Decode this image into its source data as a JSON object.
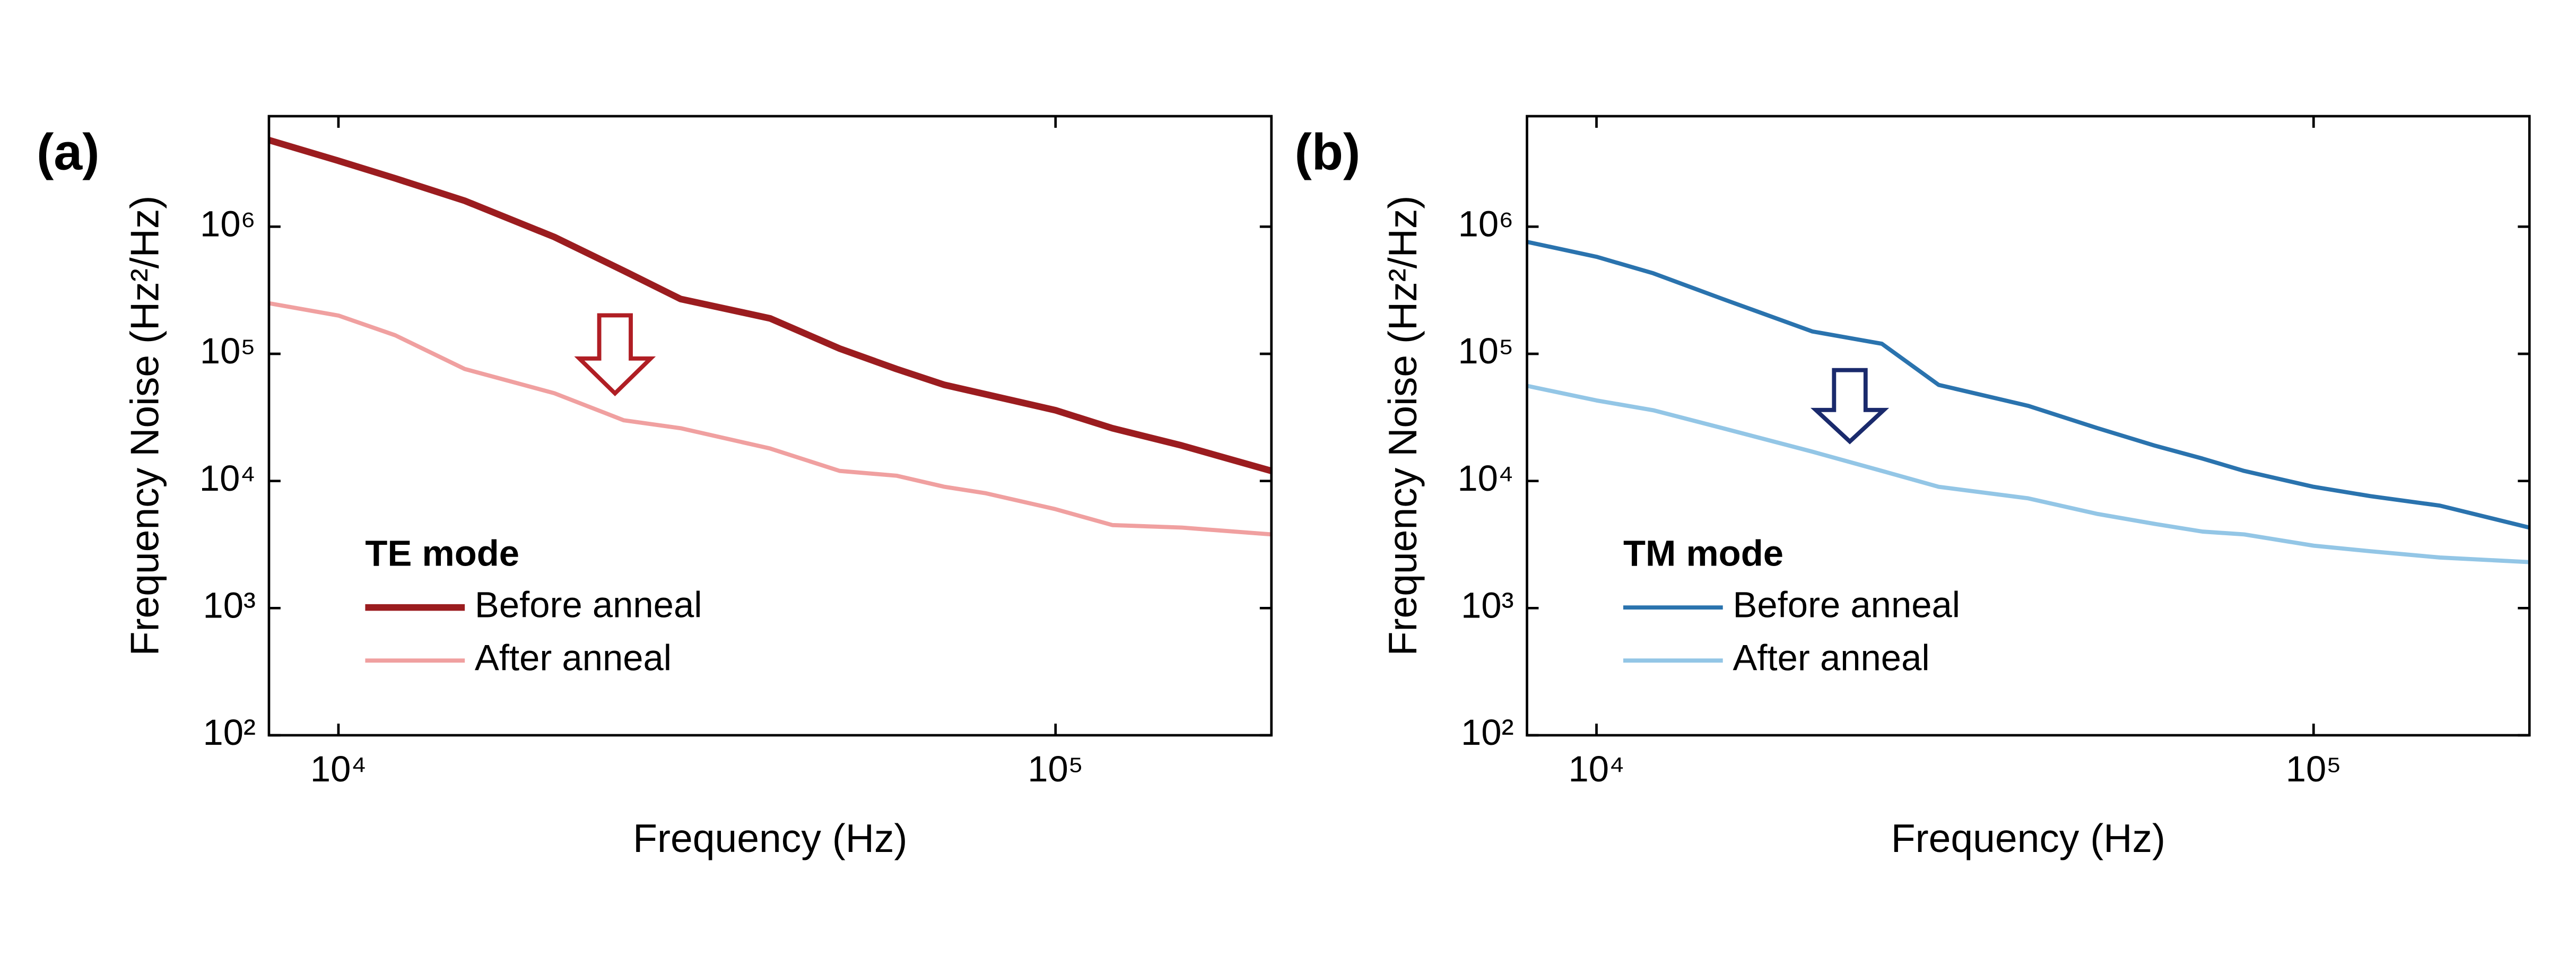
{
  "chart_data": [
    {
      "type": "line",
      "panel_label": "(a)",
      "legend_title": "TE mode",
      "legend": "lower left",
      "x_label": "Frequency (Hz)",
      "y_label": "Frequency Noise (Hz²/Hz)",
      "xscale": "log",
      "yscale": "log",
      "xlim": [
        8000,
        200000
      ],
      "ylim": [
        100,
        7400000
      ],
      "xticks": [
        {
          "value": 10000,
          "label": "10⁴"
        },
        {
          "value": 100000,
          "label": "10⁵"
        }
      ],
      "yticks": [
        {
          "value": 100,
          "label": "10²"
        },
        {
          "value": 1000,
          "label": "10³"
        },
        {
          "value": 10000,
          "label": "10⁴"
        },
        {
          "value": 100000,
          "label": "10⁵"
        },
        {
          "value": 1000000,
          "label": "10⁶"
        }
      ],
      "x": [
        8000,
        10000,
        12000,
        15000,
        20000,
        25000,
        30000,
        40000,
        50000,
        60000,
        70000,
        80000,
        100000,
        120000,
        150000,
        200000
      ],
      "series": [
        {
          "name": "Before anneal",
          "color": "#9b1c1f",
          "values": [
            4800000,
            3300000,
            2400000,
            1600000,
            830000,
            450000,
            270000,
            190000,
            110000,
            76000,
            57000,
            48000,
            36000,
            26000,
            19000,
            12000
          ]
        },
        {
          "name": "After anneal",
          "color": "#f0a0a0",
          "values": [
            250000,
            200000,
            140000,
            76000,
            49000,
            30000,
            26000,
            18000,
            12000,
            11000,
            9000,
            8000,
            6000,
            4500,
            4300,
            3800
          ]
        }
      ]
    },
    {
      "type": "line",
      "panel_label": "(b)",
      "legend_title": "TM mode",
      "legend": "lower left",
      "x_label": "Frequency (Hz)",
      "y_label": "Frequency Noise (Hz²/Hz)",
      "xscale": "log",
      "yscale": "log",
      "xlim": [
        8000,
        200000
      ],
      "ylim": [
        100,
        7400000
      ],
      "xticks": [
        {
          "value": 10000,
          "label": "10⁴"
        },
        {
          "value": 100000,
          "label": "10⁵"
        }
      ],
      "yticks": [
        {
          "value": 100,
          "label": "10²"
        },
        {
          "value": 1000,
          "label": "10³"
        },
        {
          "value": 10000,
          "label": "10⁴"
        },
        {
          "value": 100000,
          "label": "10⁵"
        },
        {
          "value": 1000000,
          "label": "10⁶"
        }
      ],
      "x": [
        8000,
        10000,
        12000,
        15000,
        20000,
        25000,
        30000,
        40000,
        50000,
        60000,
        70000,
        80000,
        100000,
        120000,
        150000,
        200000
      ],
      "series": [
        {
          "name": "Before anneal",
          "color": "#2a73ae",
          "values": [
            760000,
            580000,
            430000,
            270000,
            150000,
            120000,
            57000,
            39000,
            26000,
            19000,
            15000,
            12000,
            9000,
            7600,
            6400,
            4300
          ]
        },
        {
          "name": "After anneal",
          "color": "#93c6e6",
          "values": [
            56000,
            43000,
            36000,
            26000,
            17000,
            12000,
            9000,
            7300,
            5500,
            4600,
            4000,
            3800,
            3100,
            2800,
            2500,
            2300
          ]
        }
      ]
    }
  ]
}
